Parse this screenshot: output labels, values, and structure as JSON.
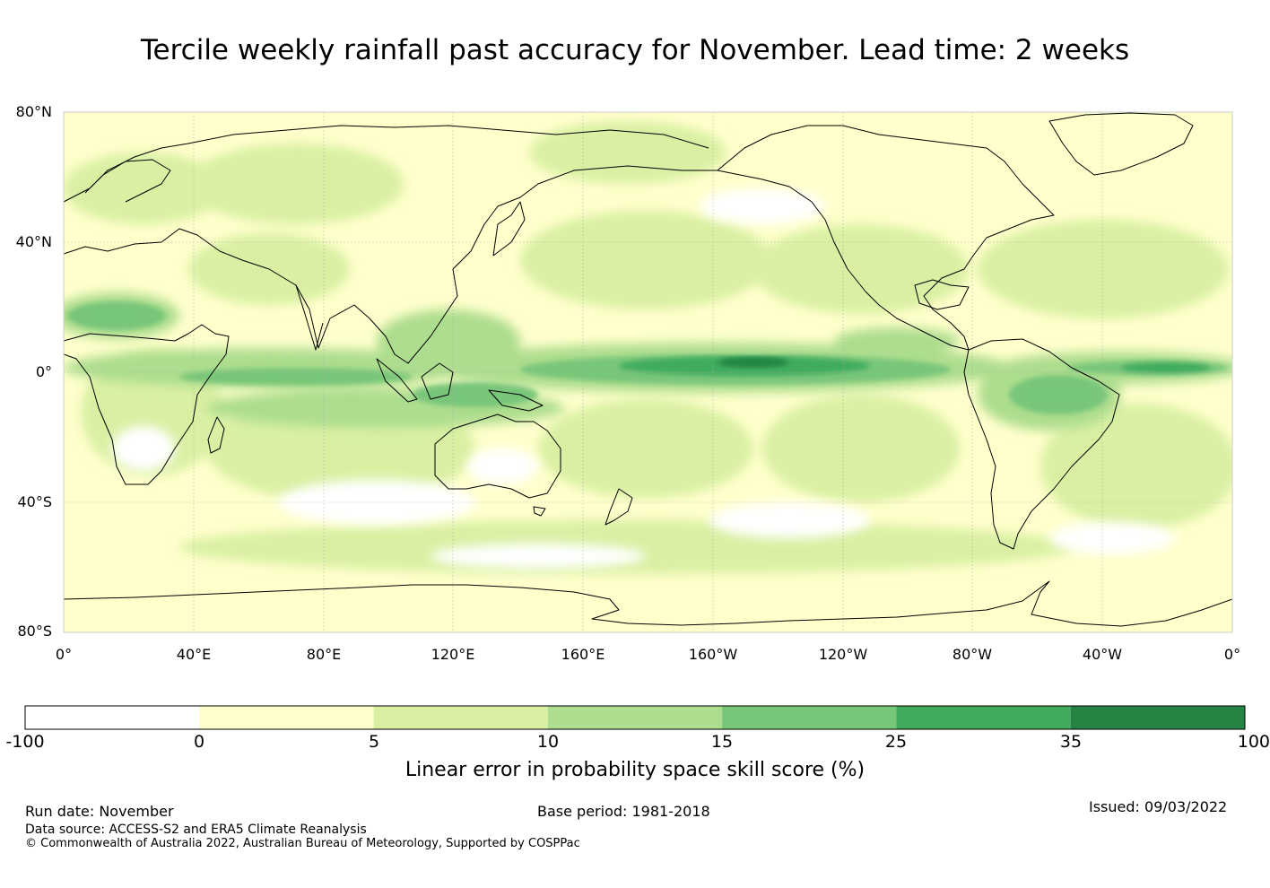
{
  "title": "Tercile weekly rainfall past accuracy for November. Lead time: 2 weeks",
  "map": {
    "lat_labels": [
      "80°N",
      "40°N",
      "0°",
      "40°S",
      "80°S"
    ],
    "lon_labels": [
      "0°",
      "40°E",
      "80°E",
      "120°E",
      "160°E",
      "160°W",
      "120°W",
      "80°W",
      "40°W",
      "0°"
    ]
  },
  "colorbar": {
    "title": "Linear error in probability space skill score (%)",
    "boundaries": [
      "-100",
      "0",
      "5",
      "10",
      "15",
      "25",
      "35",
      "100"
    ],
    "colors": [
      "#ffffff",
      "#ffffcc",
      "#d9f0a3",
      "#addd8e",
      "#78c679",
      "#41ab5d",
      "#238443"
    ]
  },
  "footer": {
    "run_date": "Run date: November",
    "base_period": "Base period: 1981-2018",
    "issued": "Issued: 09/03/2022",
    "data_source": "Data source: ACCESS-S2 and ERA5 Climate Reanalysis",
    "copyright": "© Commonwealth of Australia 2022, Australian Bureau of Meteorology, Supported by COSPPac"
  }
}
